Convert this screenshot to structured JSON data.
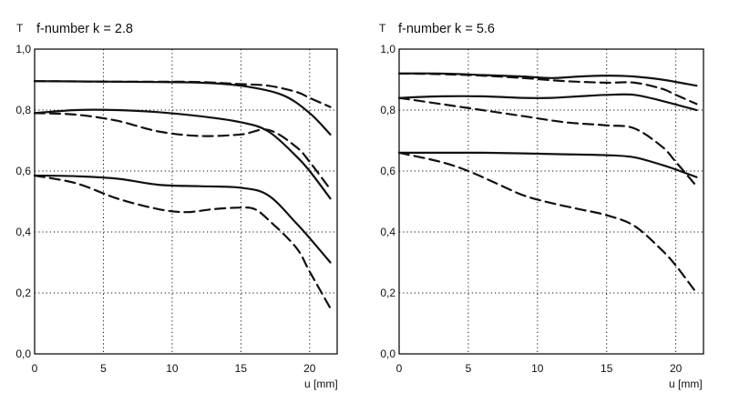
{
  "colors": {
    "ink": "#111111",
    "background": "#ffffff"
  },
  "chart_data": [
    {
      "type": "line",
      "title": "f-number k = 2.8",
      "ylabel": "T",
      "xlabel": "u [mm]",
      "xlim": [
        0,
        22
      ],
      "ylim": [
        0,
        1.0
      ],
      "xticks": [
        "0",
        "5",
        "10",
        "15",
        "20"
      ],
      "yticks": [
        "0,0",
        "0,2",
        "0,4",
        "0,6",
        "0,8",
        "1,0"
      ],
      "grid": true,
      "series": [
        {
          "style": "solid",
          "x": [
            0,
            3,
            6,
            9,
            12,
            15,
            18,
            20,
            21.5
          ],
          "y": [
            0.895,
            0.894,
            0.893,
            0.892,
            0.89,
            0.88,
            0.85,
            0.79,
            0.72
          ]
        },
        {
          "style": "dashed",
          "x": [
            0,
            3,
            6,
            9,
            12,
            15,
            17,
            19,
            20,
            21.5
          ],
          "y": [
            0.895,
            0.894,
            0.893,
            0.893,
            0.892,
            0.885,
            0.88,
            0.86,
            0.84,
            0.81
          ]
        },
        {
          "style": "solid",
          "x": [
            0,
            3,
            6,
            9,
            12,
            15,
            17,
            19,
            20,
            21.5
          ],
          "y": [
            0.79,
            0.8,
            0.8,
            0.793,
            0.78,
            0.76,
            0.73,
            0.65,
            0.6,
            0.51
          ]
        },
        {
          "style": "dashed",
          "x": [
            0,
            3,
            6,
            9,
            12,
            15,
            17,
            19,
            20,
            21.5
          ],
          "y": [
            0.79,
            0.785,
            0.765,
            0.73,
            0.715,
            0.72,
            0.735,
            0.68,
            0.63,
            0.54
          ]
        },
        {
          "style": "solid",
          "x": [
            0,
            3,
            6,
            9,
            12,
            15,
            17,
            19,
            20,
            21.5
          ],
          "y": [
            0.585,
            0.583,
            0.575,
            0.555,
            0.55,
            0.545,
            0.52,
            0.43,
            0.38,
            0.3
          ]
        },
        {
          "style": "dashed",
          "x": [
            0,
            3,
            6,
            9,
            11,
            13,
            15,
            16,
            17,
            19,
            20,
            21.5
          ],
          "y": [
            0.585,
            0.56,
            0.51,
            0.475,
            0.465,
            0.475,
            0.48,
            0.475,
            0.44,
            0.35,
            0.27,
            0.15
          ]
        }
      ]
    },
    {
      "type": "line",
      "title": "f-number k = 5.6",
      "ylabel": "T",
      "xlabel": "u [mm]",
      "xlim": [
        0,
        22
      ],
      "ylim": [
        0,
        1.0
      ],
      "xticks": [
        "0",
        "5",
        "10",
        "15",
        "20"
      ],
      "yticks": [
        "0,0",
        "0,2",
        "0,4",
        "0,6",
        "0,8",
        "1,0"
      ],
      "grid": true,
      "series": [
        {
          "style": "solid",
          "x": [
            0,
            3,
            6,
            9,
            11,
            13,
            15,
            17,
            19,
            21.5
          ],
          "y": [
            0.92,
            0.92,
            0.915,
            0.91,
            0.905,
            0.91,
            0.913,
            0.91,
            0.9,
            0.88
          ]
        },
        {
          "style": "dashed",
          "x": [
            0,
            3,
            6,
            9,
            12,
            15,
            17,
            19,
            20,
            21.5
          ],
          "y": [
            0.92,
            0.918,
            0.913,
            0.905,
            0.895,
            0.89,
            0.89,
            0.87,
            0.85,
            0.82
          ]
        },
        {
          "style": "solid",
          "x": [
            0,
            3,
            6,
            9,
            11,
            13,
            15,
            17,
            19,
            21.5
          ],
          "y": [
            0.84,
            0.845,
            0.845,
            0.84,
            0.84,
            0.845,
            0.85,
            0.85,
            0.83,
            0.8
          ]
        },
        {
          "style": "dashed",
          "x": [
            0,
            3,
            6,
            9,
            12,
            15,
            17,
            19,
            20,
            21.5
          ],
          "y": [
            0.84,
            0.82,
            0.8,
            0.78,
            0.76,
            0.75,
            0.74,
            0.68,
            0.63,
            0.55
          ]
        },
        {
          "style": "solid",
          "x": [
            0,
            3,
            6,
            9,
            12,
            15,
            17,
            19,
            20,
            21.5
          ],
          "y": [
            0.66,
            0.66,
            0.66,
            0.658,
            0.655,
            0.652,
            0.645,
            0.62,
            0.605,
            0.58
          ]
        },
        {
          "style": "dashed",
          "x": [
            0,
            3,
            5,
            7,
            9,
            11,
            13,
            15,
            17,
            19,
            20,
            21,
            21.5
          ],
          "y": [
            0.66,
            0.63,
            0.6,
            0.56,
            0.52,
            0.495,
            0.475,
            0.455,
            0.42,
            0.34,
            0.29,
            0.23,
            0.2
          ]
        }
      ]
    }
  ]
}
